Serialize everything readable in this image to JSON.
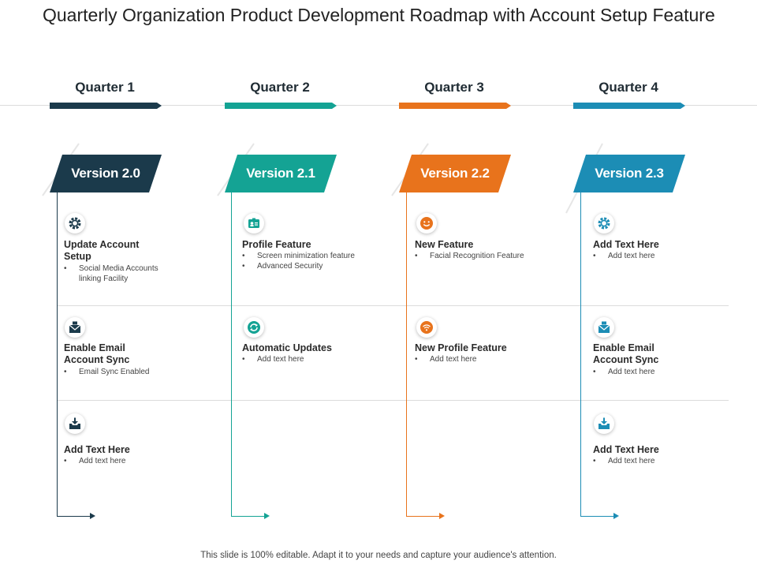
{
  "title": "Quarterly Organization Product Development Roadmap with Account Setup Feature",
  "footer": "This slide is 100% editable. Adapt it to your needs and capture your audience's attention.",
  "colors": {
    "q1": "#1b3a4b",
    "q2": "#14a394",
    "q3": "#e8731c",
    "q4": "#1c8db5"
  },
  "quarters": [
    {
      "label": "Quarter 1",
      "version": "Version 2.0"
    },
    {
      "label": "Quarter 2",
      "version": "Version 2.1"
    },
    {
      "label": "Quarter 3",
      "version": "Version 2.2"
    },
    {
      "label": "Quarter 4",
      "version": "Version 2.3"
    }
  ],
  "cells": {
    "q1r1": {
      "icon": "gear-icon",
      "title": "Update Account Setup",
      "bullets": [
        "Social Media Accounts linking Facility"
      ]
    },
    "q1r2": {
      "icon": "envelope-icon",
      "title": "Enable Email Account  Sync",
      "bullets": [
        "Email  Sync Enabled"
      ]
    },
    "q1r3": {
      "icon": "inbox-download-icon",
      "title": "Add Text Here",
      "bullets": [
        "Add text here"
      ]
    },
    "q2r1": {
      "icon": "id-card-icon",
      "title": "Profile Feature",
      "bullets": [
        "Screen minimization  feature",
        "Advanced Security"
      ]
    },
    "q2r2": {
      "icon": "refresh-icon",
      "title": "Automatic Updates",
      "bullets": [
        "Add text here"
      ]
    },
    "q3r1": {
      "icon": "smiley-icon",
      "title": "New Feature",
      "bullets": [
        "Facial Recognition Feature"
      ]
    },
    "q3r2": {
      "icon": "wifi-icon",
      "title": "New Profile Feature",
      "bullets": [
        "Add text here"
      ]
    },
    "q4r1": {
      "icon": "gear-icon",
      "title": "Add Text Here",
      "bullets": [
        "Add text here"
      ]
    },
    "q4r2": {
      "icon": "envelope-icon",
      "title": "Enable Email Account  Sync",
      "bullets": [
        "Add text here"
      ]
    },
    "q4r3": {
      "icon": "inbox-download-icon",
      "title": "Add Text Here",
      "bullets": [
        "Add text here"
      ]
    }
  }
}
